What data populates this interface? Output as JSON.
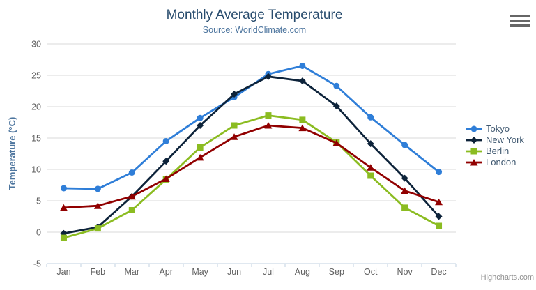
{
  "header": {
    "title": "Monthly Average Temperature",
    "subtitle": "Source: WorldClimate.com"
  },
  "menu": {
    "icon": "hamburger-menu-icon"
  },
  "credits": {
    "text": "Highcharts.com"
  },
  "chart_data": {
    "type": "line",
    "title": "Monthly Average Temperature",
    "subtitle": "Source: WorldClimate.com",
    "categories": [
      "Jan",
      "Feb",
      "Mar",
      "Apr",
      "May",
      "Jun",
      "Jul",
      "Aug",
      "Sep",
      "Oct",
      "Nov",
      "Dec"
    ],
    "xlabel": "",
    "ylabel": "Temperature (°C)",
    "ylim": [
      -5,
      30
    ],
    "yticks": [
      30,
      25,
      20,
      15,
      10,
      5,
      0,
      -5
    ],
    "grid": "horizontal",
    "legend_position": "right",
    "colors": {
      "grid_line": "#d8d8d8",
      "axis_line": "#c0d0e0",
      "tick_label": "#606060",
      "title_text": "#274b6d",
      "subtitle_text": "#4d759e"
    },
    "series": [
      {
        "name": "Tokyo",
        "color": "#2f7ed8",
        "marker": "circle",
        "values": [
          7.0,
          6.9,
          9.5,
          14.5,
          18.2,
          21.5,
          25.2,
          26.5,
          23.3,
          18.3,
          13.9,
          9.6
        ]
      },
      {
        "name": "New York",
        "color": "#0d233a",
        "marker": "diamond",
        "values": [
          -0.2,
          0.8,
          5.7,
          11.3,
          17.0,
          22.0,
          24.8,
          24.1,
          20.1,
          14.1,
          8.6,
          2.5
        ]
      },
      {
        "name": "Berlin",
        "color": "#8bbc21",
        "marker": "square",
        "values": [
          -0.9,
          0.6,
          3.5,
          8.4,
          13.5,
          17.0,
          18.6,
          17.9,
          14.3,
          9.0,
          3.9,
          1.0
        ]
      },
      {
        "name": "London",
        "color": "#910000",
        "marker": "triangle",
        "values": [
          3.9,
          4.2,
          5.7,
          8.5,
          11.9,
          15.2,
          17.0,
          16.6,
          14.2,
          10.3,
          6.6,
          4.8
        ]
      }
    ]
  }
}
